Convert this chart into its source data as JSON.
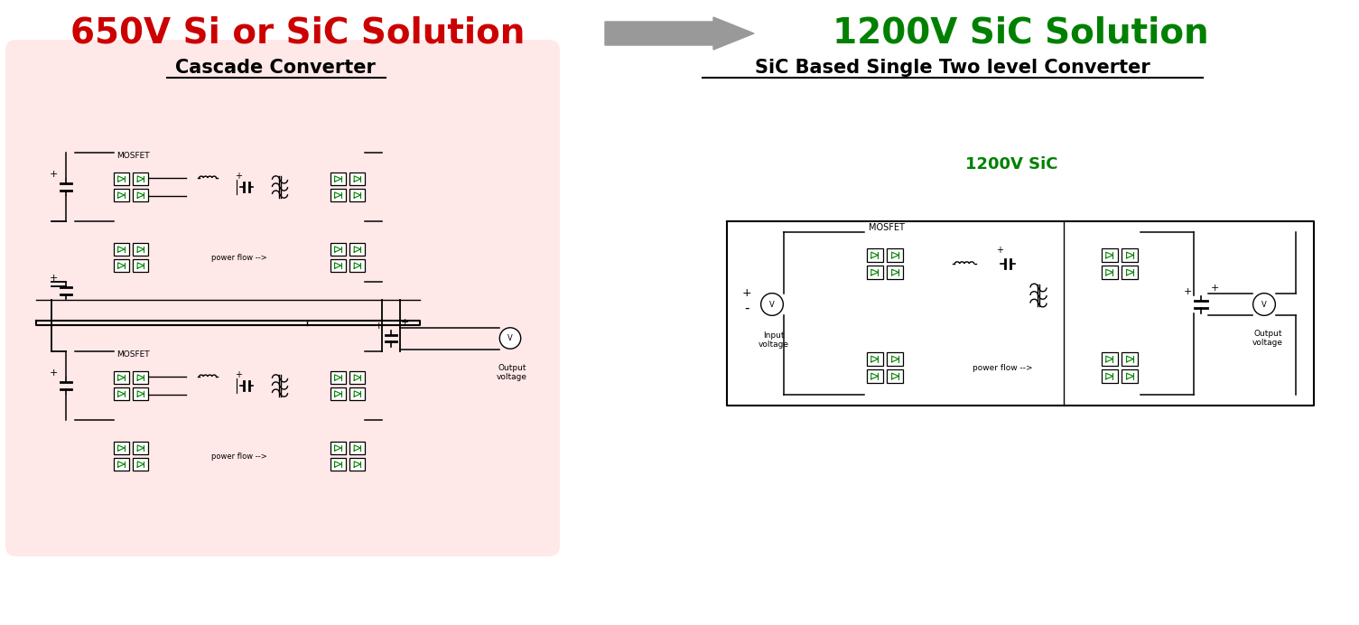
{
  "title_left": "650V Si or SiC Solution",
  "title_right": "1200V SiC Solution",
  "title_left_color": "#CC0000",
  "title_right_color": "#008000",
  "arrow_color": "#999999",
  "subtitle_left": "Cascade Converter",
  "subtitle_right": "SiC Based Single Two level Converter",
  "sic_label": "1200V SiC",
  "sic_label_color": "#008000",
  "bg_left_color": "#FFE8E8",
  "line_color": "#000000",
  "green_color": "#008000",
  "mosfet_label": "MOSFET",
  "power_flow_label": "power flow -->",
  "output_voltage_label": "Output\nvoltage",
  "input_voltage_label": "Input\nvoltage",
  "title_fontsize": 28,
  "subtitle_fontsize": 15,
  "label_fontsize": 7
}
